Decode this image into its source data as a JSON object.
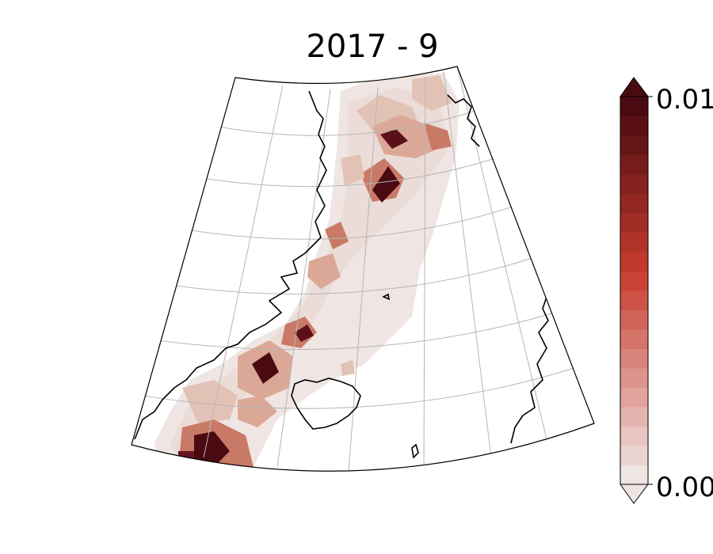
{
  "title": "2017 - 9",
  "colorbar": {
    "max_label": "0.01",
    "min_label": "0.00",
    "extend": "both",
    "levels": 20,
    "color_low": "#efe5e3",
    "color_high": "#4a0a12"
  },
  "map": {
    "projection": "conic",
    "gridlines": true,
    "ocean_color": "#ffffff",
    "coastline_color": "#000000",
    "field_colormap": "reds (light pink to dark maroon)"
  }
}
